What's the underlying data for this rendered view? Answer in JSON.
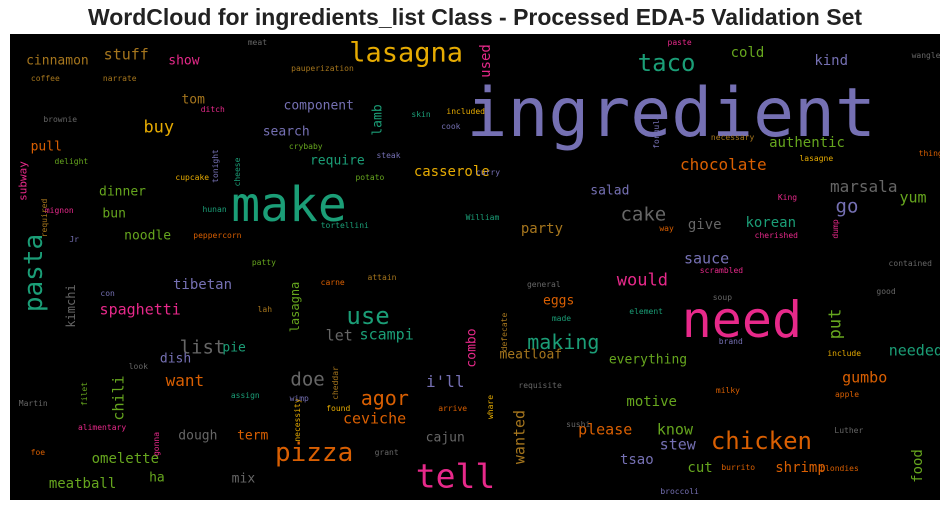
{
  "chart_data": {
    "type": "wordcloud",
    "title": "WordCloud for ingredients_list Class - Processed EDA-5 Validation Set",
    "colors": {
      "purple": "#7570b3",
      "green": "#1b9e77",
      "pink": "#e7298a",
      "orange": "#d95f02",
      "lime": "#66a61e",
      "gold": "#e6ab02",
      "brown": "#a6761d",
      "gray": "#666666"
    },
    "words": [
      {
        "text": "ingredient",
        "size": 68,
        "color": "purple",
        "x": 0.711,
        "y": 0.172
      },
      {
        "text": "make",
        "size": 48,
        "color": "green",
        "x": 0.3,
        "y": 0.367
      },
      {
        "text": "need",
        "size": 50,
        "color": "pink",
        "x": 0.787,
        "y": 0.614
      },
      {
        "text": "tell",
        "size": 33,
        "color": "pink",
        "x": 0.479,
        "y": 0.948
      },
      {
        "text": "lasagna",
        "size": 27,
        "color": "gold",
        "x": 0.426,
        "y": 0.041
      },
      {
        "text": "pizza",
        "size": 26,
        "color": "orange",
        "x": 0.327,
        "y": 0.9
      },
      {
        "text": "chicken",
        "size": 24,
        "color": "orange",
        "x": 0.808,
        "y": 0.873
      },
      {
        "text": "pasta",
        "size": 26,
        "color": "green",
        "x": 0.026,
        "y": 0.513,
        "rot": true
      },
      {
        "text": "taco",
        "size": 24,
        "color": "green",
        "x": 0.706,
        "y": 0.063
      },
      {
        "text": "use",
        "size": 24,
        "color": "green",
        "x": 0.385,
        "y": 0.605
      },
      {
        "text": "agor",
        "size": 20,
        "color": "orange",
        "x": 0.403,
        "y": 0.781
      },
      {
        "text": "making",
        "size": 20,
        "color": "green",
        "x": 0.595,
        "y": 0.661
      },
      {
        "text": "list",
        "size": 19,
        "color": "gray",
        "x": 0.207,
        "y": 0.674
      },
      {
        "text": "doe",
        "size": 19,
        "color": "gray",
        "x": 0.32,
        "y": 0.742
      },
      {
        "text": "cake",
        "size": 19,
        "color": "gray",
        "x": 0.681,
        "y": 0.389
      },
      {
        "text": "chocolate",
        "size": 16,
        "color": "orange",
        "x": 0.767,
        "y": 0.281
      },
      {
        "text": "casserole",
        "size": 14,
        "color": "gold",
        "x": 0.475,
        "y": 0.296
      },
      {
        "text": "buy",
        "size": 17,
        "color": "gold",
        "x": 0.16,
        "y": 0.202
      },
      {
        "text": "stuff",
        "size": 15,
        "color": "brown",
        "x": 0.125,
        "y": 0.044
      },
      {
        "text": "cinnamon",
        "size": 13,
        "color": "brown",
        "x": 0.051,
        "y": 0.057
      },
      {
        "text": "show",
        "size": 13,
        "color": "pink",
        "x": 0.187,
        "y": 0.058
      },
      {
        "text": "tom",
        "size": 13,
        "color": "brown",
        "x": 0.197,
        "y": 0.141
      },
      {
        "text": "component",
        "size": 13,
        "color": "purple",
        "x": 0.332,
        "y": 0.155
      },
      {
        "text": "search",
        "size": 13,
        "color": "purple",
        "x": 0.297,
        "y": 0.211
      },
      {
        "text": "require",
        "size": 13,
        "color": "green",
        "x": 0.352,
        "y": 0.272
      },
      {
        "text": "lamb",
        "size": 13,
        "color": "green",
        "x": 0.396,
        "y": 0.185,
        "rot": true
      },
      {
        "text": "used",
        "size": 14,
        "color": "pink",
        "x": 0.512,
        "y": 0.059,
        "rot": true
      },
      {
        "text": "cold",
        "size": 14,
        "color": "lime",
        "x": 0.793,
        "y": 0.041
      },
      {
        "text": "kind",
        "size": 14,
        "color": "purple",
        "x": 0.883,
        "y": 0.059
      },
      {
        "text": "authentic",
        "size": 14,
        "color": "lime",
        "x": 0.857,
        "y": 0.233
      },
      {
        "text": "marsala",
        "size": 16,
        "color": "gray",
        "x": 0.918,
        "y": 0.328
      },
      {
        "text": "yum",
        "size": 15,
        "color": "lime",
        "x": 0.971,
        "y": 0.353
      },
      {
        "text": "go",
        "size": 19,
        "color": "purple",
        "x": 0.9,
        "y": 0.372
      },
      {
        "text": "korean",
        "size": 14,
        "color": "green",
        "x": 0.818,
        "y": 0.405
      },
      {
        "text": "give",
        "size": 14,
        "color": "gray",
        "x": 0.747,
        "y": 0.41
      },
      {
        "text": "salad",
        "size": 13,
        "color": "purple",
        "x": 0.645,
        "y": 0.337
      },
      {
        "text": "party",
        "size": 14,
        "color": "brown",
        "x": 0.572,
        "y": 0.418
      },
      {
        "text": "sauce",
        "size": 15,
        "color": "purple",
        "x": 0.749,
        "y": 0.482
      },
      {
        "text": "would",
        "size": 17,
        "color": "pink",
        "x": 0.68,
        "y": 0.53
      },
      {
        "text": "put",
        "size": 17,
        "color": "lime",
        "x": 0.888,
        "y": 0.622,
        "rot": true
      },
      {
        "text": "needed",
        "size": 15,
        "color": "green",
        "x": 0.974,
        "y": 0.68
      },
      {
        "text": "gumbo",
        "size": 15,
        "color": "orange",
        "x": 0.919,
        "y": 0.738
      },
      {
        "text": "everything",
        "size": 13,
        "color": "lime",
        "x": 0.686,
        "y": 0.699
      },
      {
        "text": "meatloaf",
        "size": 13,
        "color": "brown",
        "x": 0.56,
        "y": 0.688
      },
      {
        "text": "eggs",
        "size": 13,
        "color": "orange",
        "x": 0.59,
        "y": 0.573
      },
      {
        "text": "combo",
        "size": 13,
        "color": "pink",
        "x": 0.497,
        "y": 0.673,
        "rot": true
      },
      {
        "text": "scampi",
        "size": 15,
        "color": "green",
        "x": 0.405,
        "y": 0.646
      },
      {
        "text": "let",
        "size": 15,
        "color": "gray",
        "x": 0.354,
        "y": 0.649
      },
      {
        "text": "i'll",
        "size": 16,
        "color": "purple",
        "x": 0.468,
        "y": 0.747
      },
      {
        "text": "ceviche",
        "size": 15,
        "color": "orange",
        "x": 0.392,
        "y": 0.827
      },
      {
        "text": "wanted",
        "size": 15,
        "color": "brown",
        "x": 0.548,
        "y": 0.865,
        "rot": true
      },
      {
        "text": "please",
        "size": 15,
        "color": "orange",
        "x": 0.64,
        "y": 0.849
      },
      {
        "text": "know",
        "size": 15,
        "color": "lime",
        "x": 0.715,
        "y": 0.85
      },
      {
        "text": "stew",
        "size": 15,
        "color": "purple",
        "x": 0.718,
        "y": 0.883
      },
      {
        "text": "motive",
        "size": 14,
        "color": "lime",
        "x": 0.69,
        "y": 0.789
      },
      {
        "text": "cajun",
        "size": 13,
        "color": "gray",
        "x": 0.468,
        "y": 0.867
      },
      {
        "text": "tsao",
        "size": 14,
        "color": "purple",
        "x": 0.674,
        "y": 0.914
      },
      {
        "text": "cut",
        "size": 14,
        "color": "lime",
        "x": 0.742,
        "y": 0.931
      },
      {
        "text": "shrimp",
        "size": 14,
        "color": "orange",
        "x": 0.85,
        "y": 0.931
      },
      {
        "text": "food",
        "size": 14,
        "color": "lime",
        "x": 0.976,
        "y": 0.928,
        "rot": true
      },
      {
        "text": "spaghetti",
        "size": 15,
        "color": "pink",
        "x": 0.14,
        "y": 0.593
      },
      {
        "text": "tibetan",
        "size": 14,
        "color": "purple",
        "x": 0.207,
        "y": 0.538
      },
      {
        "text": "lasagna",
        "size": 12,
        "color": "lime",
        "x": 0.306,
        "y": 0.586,
        "rot": true
      },
      {
        "text": "kimchi",
        "size": 12,
        "color": "gray",
        "x": 0.066,
        "y": 0.583,
        "rot": true
      },
      {
        "text": "chili",
        "size": 15,
        "color": "lime",
        "x": 0.117,
        "y": 0.781,
        "rot": true
      },
      {
        "text": "want",
        "size": 16,
        "color": "orange",
        "x": 0.188,
        "y": 0.744
      },
      {
        "text": "dish",
        "size": 13,
        "color": "purple",
        "x": 0.178,
        "y": 0.697
      },
      {
        "text": "pie",
        "size": 13,
        "color": "green",
        "x": 0.241,
        "y": 0.674
      },
      {
        "text": "dough",
        "size": 13,
        "color": "gray",
        "x": 0.202,
        "y": 0.863
      },
      {
        "text": "term",
        "size": 13,
        "color": "orange",
        "x": 0.261,
        "y": 0.863
      },
      {
        "text": "omelette",
        "size": 14,
        "color": "lime",
        "x": 0.124,
        "y": 0.913
      },
      {
        "text": "meatball",
        "size": 14,
        "color": "lime",
        "x": 0.078,
        "y": 0.966
      },
      {
        "text": "ha",
        "size": 13,
        "color": "lime",
        "x": 0.158,
        "y": 0.952
      },
      {
        "text": "mix",
        "size": 13,
        "color": "gray",
        "x": 0.251,
        "y": 0.954
      },
      {
        "text": "dinner",
        "size": 13,
        "color": "lime",
        "x": 0.121,
        "y": 0.338
      },
      {
        "text": "bun",
        "size": 13,
        "color": "lime",
        "x": 0.112,
        "y": 0.387
      },
      {
        "text": "noodle",
        "size": 13,
        "color": "lime",
        "x": 0.148,
        "y": 0.434
      },
      {
        "text": "pull",
        "size": 13,
        "color": "orange",
        "x": 0.039,
        "y": 0.242
      },
      {
        "text": "subway",
        "size": 11,
        "color": "pink",
        "x": 0.014,
        "y": 0.316,
        "rot": true
      },
      {
        "text": "delight",
        "size": 8,
        "color": "lime",
        "x": 0.066,
        "y": 0.274
      },
      {
        "text": "coffee",
        "size": 8,
        "color": "brown",
        "x": 0.038,
        "y": 0.096
      },
      {
        "text": "narrate",
        "size": 8,
        "color": "brown",
        "x": 0.118,
        "y": 0.096
      },
      {
        "text": "brownie",
        "size": 8,
        "color": "gray",
        "x": 0.054,
        "y": 0.184
      },
      {
        "text": "ditch",
        "size": 8,
        "color": "pink",
        "x": 0.218,
        "y": 0.163
      },
      {
        "text": "crybaby",
        "size": 8,
        "color": "lime",
        "x": 0.318,
        "y": 0.242
      },
      {
        "text": "skin",
        "size": 8,
        "color": "green",
        "x": 0.442,
        "y": 0.174
      },
      {
        "text": "included",
        "size": 8,
        "color": "gold",
        "x": 0.49,
        "y": 0.168
      },
      {
        "text": "cook",
        "size": 8,
        "color": "purple",
        "x": 0.474,
        "y": 0.2
      },
      {
        "text": "steak",
        "size": 8,
        "color": "purple",
        "x": 0.407,
        "y": 0.262
      },
      {
        "text": "curry",
        "size": 8,
        "color": "purple",
        "x": 0.514,
        "y": 0.298
      },
      {
        "text": "potato",
        "size": 8,
        "color": "lime",
        "x": 0.387,
        "y": 0.31
      },
      {
        "text": "cupcake",
        "size": 8,
        "color": "gold",
        "x": 0.196,
        "y": 0.31
      },
      {
        "text": "tonight",
        "size": 8,
        "color": "purple",
        "x": 0.222,
        "y": 0.284,
        "rot": true
      },
      {
        "text": "cheese",
        "size": 8,
        "color": "green",
        "x": 0.245,
        "y": 0.296,
        "rot": true
      },
      {
        "text": "mignon",
        "size": 8,
        "color": "pink",
        "x": 0.053,
        "y": 0.379
      },
      {
        "text": "required",
        "size": 8,
        "color": "brown",
        "x": 0.038,
        "y": 0.395,
        "rot": true
      },
      {
        "text": "hunan",
        "size": 8,
        "color": "green",
        "x": 0.22,
        "y": 0.378
      },
      {
        "text": "William",
        "size": 8,
        "color": "green",
        "x": 0.508,
        "y": 0.395
      },
      {
        "text": "peppercorn",
        "size": 8,
        "color": "orange",
        "x": 0.223,
        "y": 0.434
      },
      {
        "text": "Jr",
        "size": 8,
        "color": "purple",
        "x": 0.069,
        "y": 0.442
      },
      {
        "text": "tortellini",
        "size": 8,
        "color": "green",
        "x": 0.36,
        "y": 0.413
      },
      {
        "text": "patty",
        "size": 8,
        "color": "lime",
        "x": 0.273,
        "y": 0.492
      },
      {
        "text": "carne",
        "size": 8,
        "color": "orange",
        "x": 0.347,
        "y": 0.535
      },
      {
        "text": "attain",
        "size": 8,
        "color": "brown",
        "x": 0.4,
        "y": 0.523
      },
      {
        "text": "con",
        "size": 8,
        "color": "purple",
        "x": 0.105,
        "y": 0.558
      },
      {
        "text": "lah",
        "size": 8,
        "color": "brown",
        "x": 0.274,
        "y": 0.592
      },
      {
        "text": "cheddar",
        "size": 8,
        "color": "brown",
        "x": 0.35,
        "y": 0.748,
        "rot": true
      },
      {
        "text": "defecate",
        "size": 8,
        "color": "brown",
        "x": 0.532,
        "y": 0.639,
        "rot": true
      },
      {
        "text": "general",
        "size": 8,
        "color": "gray",
        "x": 0.574,
        "y": 0.539
      },
      {
        "text": "made",
        "size": 8,
        "color": "green",
        "x": 0.593,
        "y": 0.612
      },
      {
        "text": "element",
        "size": 8,
        "color": "green",
        "x": 0.684,
        "y": 0.597
      },
      {
        "text": "soup",
        "size": 8,
        "color": "gray",
        "x": 0.766,
        "y": 0.566
      },
      {
        "text": "scrambled",
        "size": 8,
        "color": "pink",
        "x": 0.765,
        "y": 0.509
      },
      {
        "text": "cherished",
        "size": 8,
        "color": "pink",
        "x": 0.824,
        "y": 0.434
      },
      {
        "text": "King",
        "size": 8,
        "color": "pink",
        "x": 0.836,
        "y": 0.352
      },
      {
        "text": "way",
        "size": 8,
        "color": "orange",
        "x": 0.706,
        "y": 0.418
      },
      {
        "text": "dump",
        "size": 8,
        "color": "pink",
        "x": 0.888,
        "y": 0.418,
        "rot": true
      },
      {
        "text": "lasagne",
        "size": 8,
        "color": "gold",
        "x": 0.867,
        "y": 0.268
      },
      {
        "text": "necessary",
        "size": 8,
        "color": "brown",
        "x": 0.777,
        "y": 0.224
      },
      {
        "text": "formula",
        "size": 8,
        "color": "purple",
        "x": 0.696,
        "y": 0.211,
        "rot": true
      },
      {
        "text": "paste",
        "size": 8,
        "color": "pink",
        "x": 0.72,
        "y": 0.02
      },
      {
        "text": "wangle",
        "size": 8,
        "color": "gray",
        "x": 0.985,
        "y": 0.048
      },
      {
        "text": "thing",
        "size": 8,
        "color": "orange",
        "x": 0.99,
        "y": 0.258
      },
      {
        "text": "contained",
        "size": 8,
        "color": "gray",
        "x": 0.968,
        "y": 0.494
      },
      {
        "text": "good",
        "size": 8,
        "color": "gray",
        "x": 0.942,
        "y": 0.554
      },
      {
        "text": "brand",
        "size": 8,
        "color": "purple",
        "x": 0.775,
        "y": 0.661
      },
      {
        "text": "include",
        "size": 8,
        "color": "gold",
        "x": 0.897,
        "y": 0.687
      },
      {
        "text": "milky",
        "size": 8,
        "color": "orange",
        "x": 0.772,
        "y": 0.766
      },
      {
        "text": "apple",
        "size": 8,
        "color": "orange",
        "x": 0.9,
        "y": 0.775
      },
      {
        "text": "Luther",
        "size": 8,
        "color": "gray",
        "x": 0.902,
        "y": 0.851
      },
      {
        "text": "blondies",
        "size": 8,
        "color": "orange",
        "x": 0.892,
        "y": 0.933
      },
      {
        "text": "burrito",
        "size": 8,
        "color": "orange",
        "x": 0.783,
        "y": 0.932
      },
      {
        "text": "broccoli",
        "size": 8,
        "color": "purple",
        "x": 0.72,
        "y": 0.983
      },
      {
        "text": "sushi",
        "size": 8,
        "color": "gray",
        "x": 0.611,
        "y": 0.84
      },
      {
        "text": "requisite",
        "size": 8,
        "color": "gray",
        "x": 0.57,
        "y": 0.756
      },
      {
        "text": "whare",
        "size": 8,
        "color": "gold",
        "x": 0.517,
        "y": 0.8,
        "rot": true
      },
      {
        "text": "arrive",
        "size": 8,
        "color": "orange",
        "x": 0.476,
        "y": 0.805
      },
      {
        "text": "grant",
        "size": 8,
        "color": "gray",
        "x": 0.405,
        "y": 0.9
      },
      {
        "text": "found",
        "size": 8,
        "color": "gold",
        "x": 0.353,
        "y": 0.805
      },
      {
        "text": "necessity",
        "size": 8,
        "color": "gold",
        "x": 0.31,
        "y": 0.828,
        "rot": true
      },
      {
        "text": "wimp",
        "size": 8,
        "color": "purple",
        "x": 0.311,
        "y": 0.783
      },
      {
        "text": "assign",
        "size": 8,
        "color": "green",
        "x": 0.253,
        "y": 0.776
      },
      {
        "text": "look",
        "size": 8,
        "color": "gray",
        "x": 0.138,
        "y": 0.715
      },
      {
        "text": "filet",
        "size": 8,
        "color": "lime",
        "x": 0.081,
        "y": 0.772,
        "rot": true
      },
      {
        "text": "Martin",
        "size": 8,
        "color": "gray",
        "x": 0.025,
        "y": 0.795
      },
      {
        "text": "alimentary",
        "size": 8,
        "color": "pink",
        "x": 0.099,
        "y": 0.845
      },
      {
        "text": "gonna",
        "size": 8,
        "color": "pink",
        "x": 0.158,
        "y": 0.88,
        "rot": true
      },
      {
        "text": "foe",
        "size": 8,
        "color": "orange",
        "x": 0.03,
        "y": 0.9
      },
      {
        "text": "meat",
        "size": 8,
        "color": "gray",
        "x": 0.266,
        "y": 0.02
      },
      {
        "text": "pauperization",
        "size": 8,
        "color": "brown",
        "x": 0.336,
        "y": 0.075
      }
    ]
  }
}
